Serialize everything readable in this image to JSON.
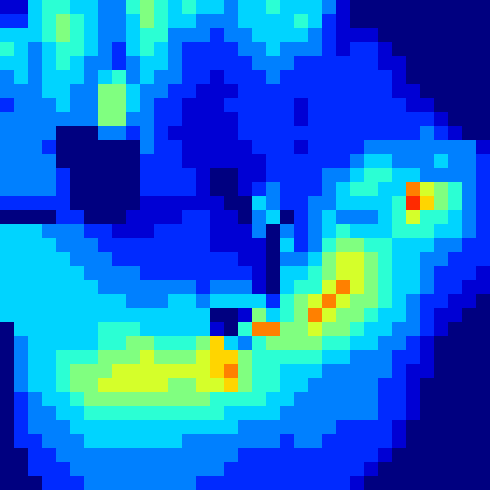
{
  "chart_data": {
    "type": "heatmap",
    "tick_labels": false,
    "clim": [
      0,
      12
    ],
    "values": [
      [
        1,
        1,
        4,
        5,
        5,
        4,
        4,
        3,
        3,
        5,
        6,
        5,
        4,
        5,
        4,
        4,
        3,
        4,
        4,
        5,
        4,
        4,
        4,
        3,
        1,
        0,
        0,
        0,
        0,
        0,
        0,
        0,
        0,
        0,
        0
      ],
      [
        2,
        2,
        4,
        5,
        6,
        5,
        4,
        3,
        3,
        4,
        6,
        5,
        4,
        4,
        3,
        3,
        3,
        4,
        4,
        4,
        4,
        5,
        4,
        2,
        1,
        0,
        0,
        0,
        0,
        0,
        0,
        0,
        0,
        0,
        0
      ],
      [
        4,
        4,
        4,
        5,
        6,
        5,
        4,
        3,
        3,
        4,
        5,
        5,
        3,
        3,
        3,
        2,
        3,
        3,
        4,
        4,
        4,
        4,
        3,
        2,
        1,
        1,
        1,
        0,
        0,
        0,
        0,
        0,
        0,
        0,
        0
      ],
      [
        5,
        4,
        3,
        4,
        5,
        5,
        4,
        3,
        2,
        4,
        5,
        4,
        3,
        2,
        2,
        2,
        2,
        3,
        3,
        4,
        3,
        3,
        3,
        2,
        1,
        2,
        2,
        1,
        0,
        0,
        0,
        0,
        0,
        0,
        0
      ],
      [
        4,
        4,
        3,
        4,
        5,
        4,
        3,
        3,
        2,
        3,
        4,
        4,
        3,
        2,
        2,
        2,
        2,
        2,
        3,
        3,
        3,
        2,
        2,
        2,
        2,
        2,
        2,
        1,
        1,
        0,
        0,
        0,
        0,
        0,
        0
      ],
      [
        3,
        4,
        3,
        4,
        4,
        4,
        3,
        4,
        5,
        3,
        4,
        3,
        3,
        2,
        2,
        1,
        2,
        2,
        2,
        3,
        2,
        2,
        2,
        2,
        2,
        2,
        2,
        2,
        1,
        0,
        0,
        0,
        0,
        0,
        0
      ],
      [
        3,
        3,
        3,
        4,
        4,
        3,
        3,
        6,
        6,
        4,
        3,
        3,
        2,
        2,
        1,
        1,
        1,
        2,
        2,
        2,
        2,
        2,
        2,
        2,
        2,
        2,
        2,
        2,
        1,
        1,
        0,
        0,
        0,
        0,
        0
      ],
      [
        2,
        3,
        3,
        3,
        4,
        3,
        3,
        6,
        6,
        4,
        3,
        2,
        2,
        1,
        1,
        1,
        2,
        2,
        2,
        2,
        2,
        1,
        2,
        2,
        2,
        2,
        2,
        2,
        2,
        1,
        1,
        0,
        0,
        0,
        0
      ],
      [
        3,
        3,
        3,
        3,
        3,
        3,
        3,
        6,
        6,
        3,
        3,
        2,
        2,
        1,
        1,
        1,
        1,
        2,
        2,
        2,
        2,
        1,
        2,
        2,
        2,
        2,
        2,
        2,
        2,
        2,
        2,
        1,
        0,
        0,
        0
      ],
      [
        3,
        3,
        3,
        3,
        0,
        0,
        0,
        3,
        3,
        2,
        3,
        2,
        1,
        1,
        1,
        1,
        1,
        2,
        2,
        2,
        2,
        2,
        2,
        2,
        2,
        2,
        2,
        2,
        2,
        2,
        3,
        2,
        1,
        0,
        0
      ],
      [
        3,
        3,
        3,
        2,
        0,
        0,
        0,
        0,
        0,
        0,
        3,
        2,
        2,
        1,
        1,
        1,
        1,
        1,
        2,
        2,
        2,
        1,
        2,
        2,
        2,
        2,
        3,
        3,
        3,
        3,
        3,
        3,
        3,
        3,
        1
      ],
      [
        3,
        3,
        3,
        3,
        0,
        0,
        0,
        0,
        0,
        0,
        2,
        2,
        2,
        1,
        1,
        1,
        1,
        1,
        1,
        2,
        2,
        2,
        2,
        2,
        2,
        3,
        4,
        4,
        3,
        3,
        3,
        4,
        3,
        3,
        2
      ],
      [
        3,
        3,
        3,
        3,
        2,
        0,
        0,
        0,
        0,
        0,
        2,
        2,
        2,
        2,
        1,
        0,
        0,
        1,
        1,
        2,
        2,
        2,
        2,
        3,
        3,
        4,
        5,
        5,
        4,
        4,
        3,
        3,
        3,
        3,
        2
      ],
      [
        3,
        3,
        3,
        3,
        2,
        0,
        0,
        0,
        0,
        0,
        2,
        2,
        2,
        2,
        1,
        0,
        0,
        1,
        2,
        3,
        2,
        2,
        2,
        3,
        4,
        5,
        5,
        4,
        4,
        9,
        7,
        6,
        5,
        3,
        2
      ],
      [
        2,
        2,
        2,
        2,
        2,
        0,
        0,
        0,
        0,
        0,
        1,
        1,
        1,
        1,
        1,
        1,
        0,
        0,
        4,
        3,
        2,
        2,
        3,
        3,
        4,
        4,
        4,
        4,
        5,
        10,
        8,
        6,
        5,
        3,
        2
      ],
      [
        0,
        0,
        0,
        0,
        2,
        2,
        0,
        0,
        0,
        1,
        1,
        1,
        1,
        2,
        2,
        1,
        1,
        0,
        3,
        4,
        0,
        2,
        3,
        4,
        3,
        3,
        3,
        4,
        5,
        7,
        5,
        5,
        4,
        3,
        2
      ],
      [
        4,
        4,
        4,
        3,
        3,
        3,
        2,
        2,
        1,
        1,
        1,
        2,
        2,
        2,
        2,
        1,
        1,
        1,
        3,
        0,
        3,
        2,
        3,
        4,
        5,
        4,
        4,
        4,
        5,
        5,
        5,
        4,
        4,
        3,
        2
      ],
      [
        4,
        4,
        4,
        4,
        3,
        3,
        3,
        2,
        2,
        2,
        2,
        2,
        2,
        2,
        2,
        1,
        1,
        1,
        1,
        0,
        4,
        2,
        3,
        5,
        6,
        6,
        5,
        5,
        4,
        4,
        4,
        3,
        3,
        2,
        2
      ],
      [
        4,
        4,
        4,
        4,
        4,
        3,
        3,
        3,
        2,
        2,
        2,
        2,
        2,
        2,
        2,
        2,
        2,
        1,
        1,
        0,
        3,
        3,
        4,
        6,
        7,
        7,
        6,
        5,
        4,
        4,
        3,
        3,
        2,
        2,
        2
      ],
      [
        4,
        4,
        4,
        4,
        4,
        4,
        3,
        3,
        3,
        3,
        2,
        2,
        2,
        2,
        2,
        2,
        2,
        2,
        1,
        0,
        4,
        4,
        5,
        6,
        7,
        7,
        6,
        5,
        4,
        4,
        3,
        2,
        2,
        2,
        1
      ],
      [
        4,
        4,
        4,
        4,
        4,
        4,
        4,
        3,
        3,
        3,
        3,
        3,
        3,
        3,
        2,
        3,
        3,
        3,
        1,
        0,
        4,
        5,
        5,
        7,
        9,
        7,
        6,
        5,
        4,
        4,
        3,
        2,
        2,
        1,
        1
      ],
      [
        4,
        4,
        4,
        4,
        4,
        4,
        4,
        4,
        4,
        3,
        3,
        3,
        4,
        4,
        3,
        4,
        4,
        4,
        4,
        2,
        5,
        6,
        7,
        9,
        7,
        6,
        6,
        5,
        4,
        3,
        2,
        2,
        1,
        1,
        0
      ],
      [
        4,
        4,
        4,
        4,
        4,
        4,
        4,
        4,
        4,
        4,
        4,
        4,
        4,
        4,
        4,
        0,
        0,
        1,
        6,
        4,
        5,
        6,
        9,
        7,
        6,
        6,
        5,
        4,
        4,
        3,
        2,
        1,
        1,
        0,
        0
      ],
      [
        0,
        4,
        4,
        4,
        4,
        4,
        4,
        5,
        5,
        5,
        4,
        4,
        4,
        4,
        4,
        1,
        0,
        5,
        9,
        9,
        6,
        6,
        7,
        6,
        6,
        5,
        4,
        4,
        3,
        3,
        2,
        1,
        0,
        0,
        0
      ],
      [
        0,
        3,
        4,
        4,
        4,
        4,
        4,
        5,
        5,
        6,
        6,
        5,
        5,
        5,
        6,
        8,
        4,
        3,
        5,
        6,
        6,
        6,
        6,
        5,
        5,
        4,
        4,
        3,
        3,
        2,
        1,
        0,
        0,
        0,
        0
      ],
      [
        0,
        3,
        4,
        4,
        5,
        5,
        5,
        6,
        6,
        6,
        7,
        6,
        6,
        6,
        7,
        8,
        8,
        6,
        5,
        5,
        5,
        5,
        5,
        4,
        4,
        3,
        3,
        3,
        2,
        2,
        1,
        0,
        0,
        0,
        0
      ],
      [
        0,
        3,
        4,
        4,
        5,
        6,
        6,
        6,
        7,
        7,
        7,
        7,
        7,
        7,
        7,
        8,
        9,
        6,
        5,
        5,
        4,
        4,
        4,
        3,
        3,
        3,
        3,
        3,
        2,
        1,
        1,
        0,
        0,
        0,
        0
      ],
      [
        0,
        3,
        4,
        4,
        5,
        6,
        6,
        7,
        7,
        7,
        7,
        7,
        6,
        6,
        7,
        7,
        8,
        6,
        5,
        5,
        4,
        4,
        3,
        3,
        3,
        3,
        3,
        2,
        2,
        1,
        0,
        0,
        0,
        0,
        0
      ],
      [
        0,
        2,
        3,
        4,
        4,
        5,
        6,
        6,
        6,
        6,
        6,
        6,
        6,
        6,
        6,
        5,
        5,
        5,
        5,
        4,
        4,
        3,
        3,
        3,
        3,
        3,
        3,
        2,
        2,
        1,
        0,
        0,
        0,
        0,
        0
      ],
      [
        0,
        2,
        3,
        3,
        4,
        4,
        5,
        5,
        5,
        5,
        5,
        5,
        5,
        5,
        5,
        5,
        4,
        4,
        4,
        4,
        3,
        3,
        3,
        3,
        3,
        3,
        3,
        2,
        2,
        1,
        0,
        0,
        0,
        0,
        0
      ],
      [
        0,
        2,
        3,
        3,
        3,
        4,
        4,
        4,
        4,
        4,
        4,
        4,
        4,
        4,
        4,
        4,
        4,
        3,
        3,
        3,
        3,
        3,
        3,
        3,
        2,
        2,
        2,
        2,
        1,
        0,
        0,
        0,
        0,
        0,
        0
      ],
      [
        0,
        2,
        2,
        3,
        3,
        3,
        4,
        4,
        4,
        4,
        4,
        4,
        4,
        3,
        3,
        3,
        3,
        3,
        3,
        3,
        2,
        3,
        3,
        2,
        2,
        2,
        2,
        2,
        1,
        0,
        0,
        0,
        0,
        0,
        0
      ],
      [
        0,
        0,
        2,
        2,
        3,
        3,
        3,
        3,
        3,
        3,
        3,
        3,
        3,
        3,
        3,
        3,
        3,
        2,
        2,
        2,
        2,
        2,
        2,
        2,
        2,
        2,
        2,
        1,
        0,
        0,
        0,
        0,
        0,
        0,
        0
      ],
      [
        0,
        0,
        2,
        2,
        2,
        3,
        3,
        3,
        3,
        3,
        3,
        3,
        3,
        3,
        3,
        3,
        2,
        2,
        2,
        2,
        2,
        2,
        2,
        2,
        2,
        2,
        1,
        0,
        0,
        0,
        0,
        0,
        0,
        0,
        0
      ],
      [
        0,
        0,
        0,
        2,
        2,
        2,
        3,
        3,
        3,
        3,
        3,
        3,
        3,
        3,
        2,
        2,
        2,
        2,
        2,
        2,
        2,
        2,
        2,
        2,
        2,
        1,
        0,
        0,
        0,
        0,
        0,
        0,
        0,
        0,
        0
      ]
    ]
  }
}
